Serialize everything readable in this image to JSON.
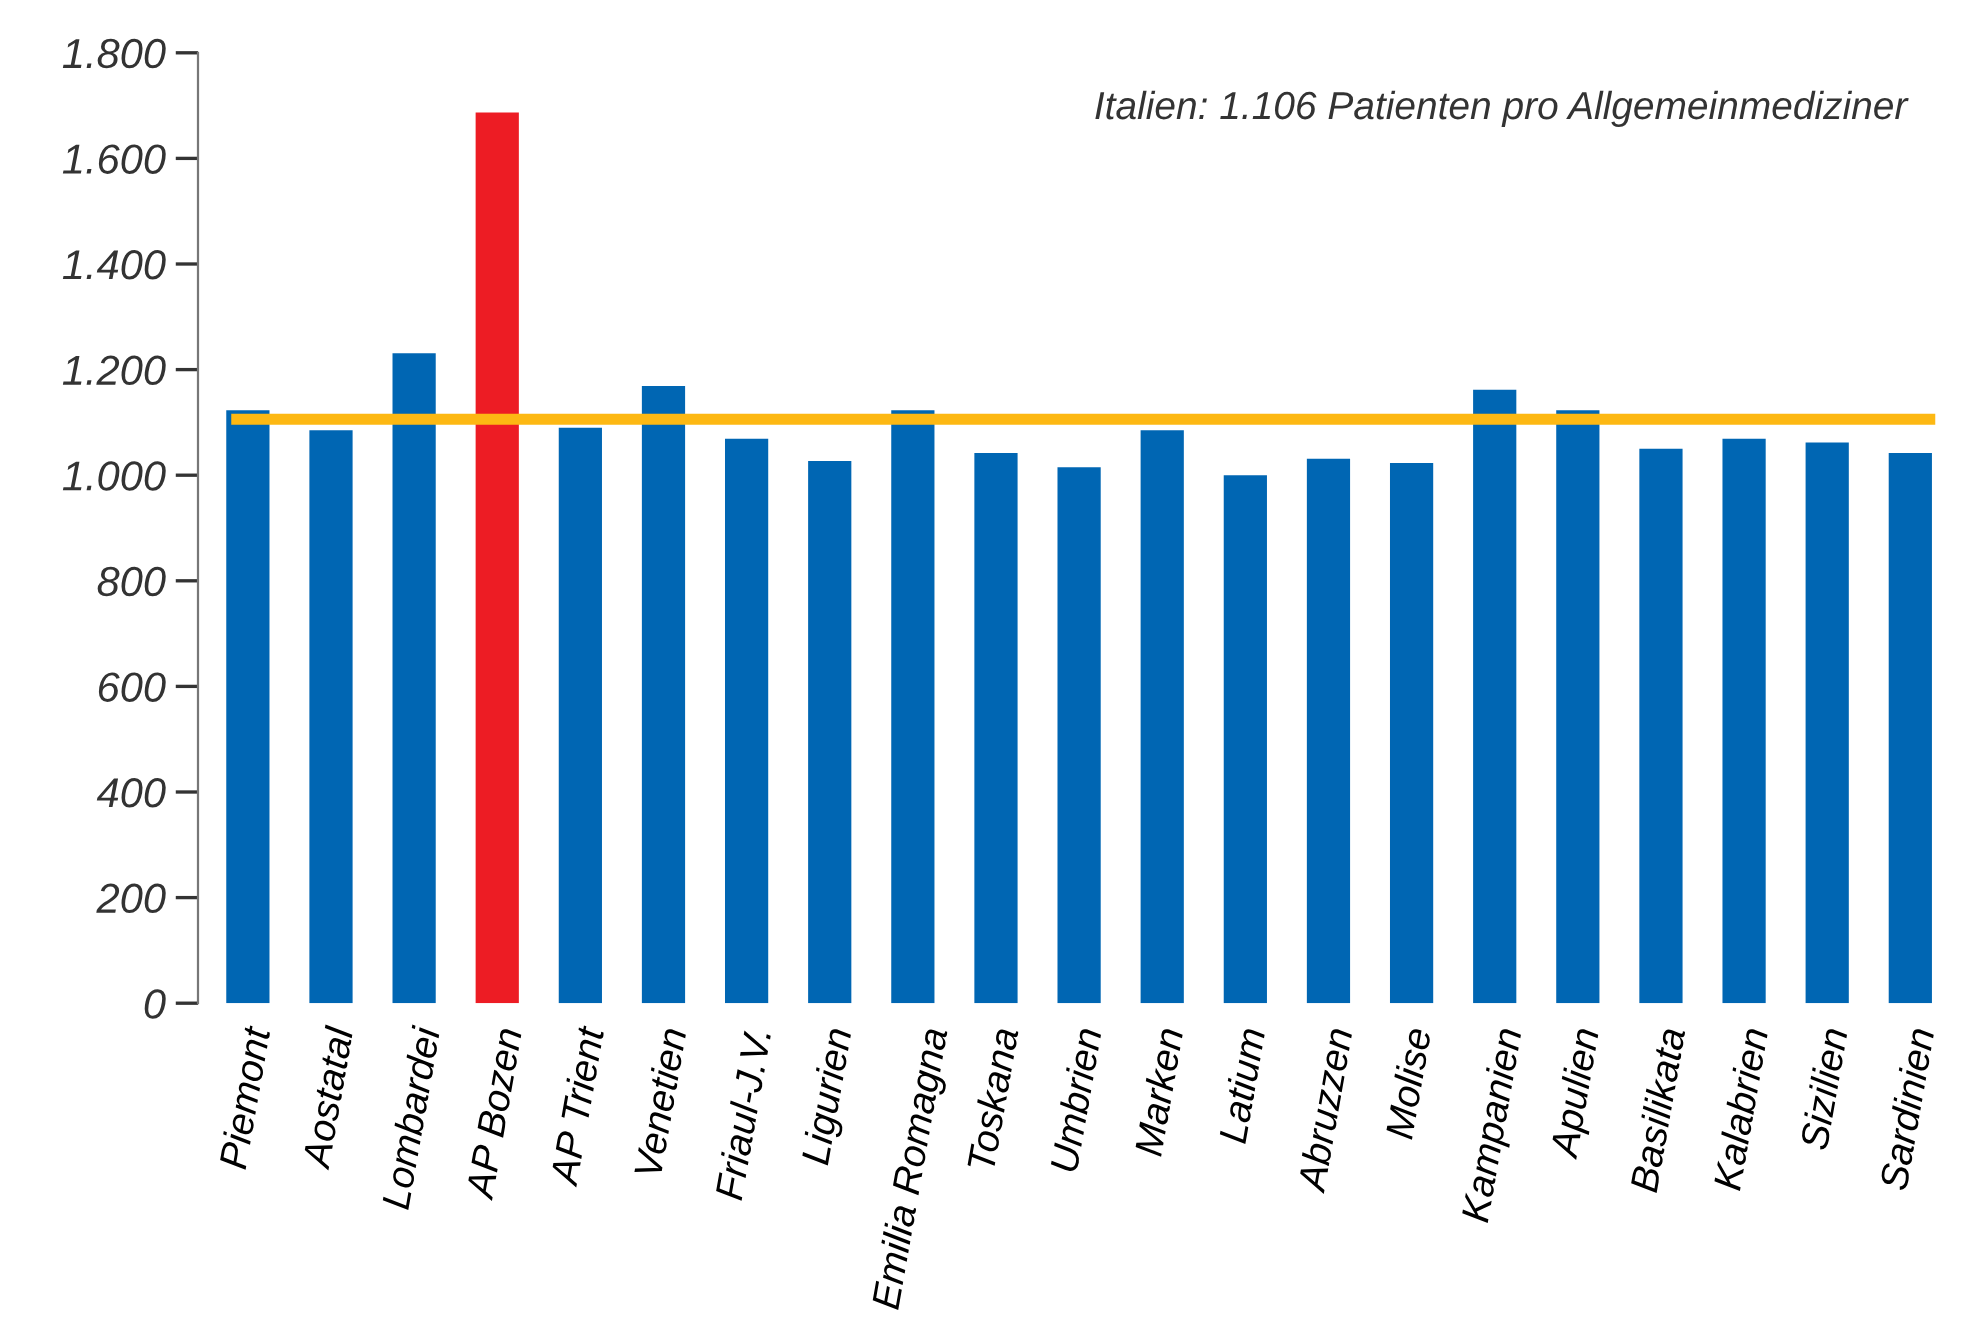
{
  "chart_data": {
    "type": "bar",
    "categories": [
      "Piemont",
      "Aostatal",
      "Lombardei",
      "AP Bozen",
      "AP Trient",
      "Venetien",
      "Friaul-J.V.",
      "Ligurien",
      "Emilia Romagna",
      "Toskana",
      "Umbrien",
      "Marken",
      "Latium",
      "Abruzzen",
      "Molise",
      "Kampanien",
      "Apulien",
      "Basilikata",
      "Kalabrien",
      "Sizilien",
      "Sardinien"
    ],
    "values": [
      1123,
      1085,
      1231,
      1687,
      1090,
      1169,
      1069,
      1027,
      1123,
      1042,
      1015,
      1085,
      1000,
      1031,
      1023,
      1162,
      1123,
      1050,
      1069,
      1062,
      1042
    ],
    "colors": [
      "#0066b3",
      "#0066b3",
      "#0066b3",
      "#ed1c24",
      "#0066b3",
      "#0066b3",
      "#0066b3",
      "#0066b3",
      "#0066b3",
      "#0066b3",
      "#0066b3",
      "#0066b3",
      "#0066b3",
      "#0066b3",
      "#0066b3",
      "#0066b3",
      "#0066b3",
      "#0066b3",
      "#0066b3",
      "#0066b3",
      "#0066b3"
    ],
    "ylim": [
      0,
      1800
    ],
    "yticks": [
      0,
      200,
      400,
      600,
      800,
      {
        "value": 1000,
        "label": "1.000"
      },
      {
        "value": 1200,
        "label": "1.200"
      },
      {
        "value": 1400,
        "label": "1.400"
      },
      {
        "value": 1600,
        "label": "1.600"
      },
      {
        "value": 1800,
        "label": "1.800"
      }
    ],
    "ref_lines": [
      {
        "axis": "y",
        "value": 1106,
        "color": "#fdb813"
      }
    ],
    "annotations": [
      "Italien: 1.106 Patienten pro Allgemeinmediziner"
    ],
    "grid": false,
    "legend": false
  }
}
